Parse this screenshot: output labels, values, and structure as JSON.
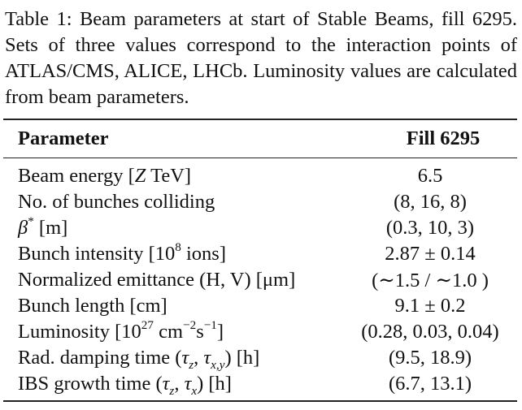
{
  "caption": "Table 1: Beam parameters at start of Stable Beams, fill 6295. Sets of three values correspond to the interaction points of ATLAS/CMS, ALICE, LHCb. Luminosity values are calculated from beam parameters.",
  "table": {
    "header": {
      "parameter": "Parameter",
      "value": "Fill 6295"
    },
    "rows": [
      {
        "parameter_pre": "Beam energy [",
        "parameter_ital": "Z",
        "parameter_post": " TeV]",
        "value": "6.5"
      },
      {
        "parameter": "No. of bunches colliding",
        "value": "(8, 16, 8)"
      },
      {
        "symbol": "β",
        "symbol_sup": "*",
        "parameter_post": " [m]",
        "value": "(0.3, 10, 3)"
      },
      {
        "parameter_pre": "Bunch intensity [10",
        "exp": "8",
        "parameter_post": " ions]",
        "value": "2.87 ± 0.14"
      },
      {
        "parameter": "Normalized emittance (H, V) [μm]",
        "value": "(∼1.5 / ∼1.0 )"
      },
      {
        "parameter": "Bunch length [cm]",
        "value": "9.1 ± 0.2"
      },
      {
        "parameter_pre": "Luminosity [10",
        "exp": "27",
        "mid": " cm",
        "exp2": "−2",
        "mid2": "s",
        "exp3": "−1",
        "parameter_post": "]",
        "value": "(0.28, 0.03, 0.04)"
      },
      {
        "parameter_pre": "Rad. damping time (",
        "tau1": "τ",
        "tau1_sub": "z",
        "sep": ", ",
        "tau2": "τ",
        "tau2_sub": "x,y",
        "parameter_post": ") [h]",
        "value": "(9.5, 18.9)"
      },
      {
        "parameter_pre": "IBS growth time (",
        "tau1": "τ",
        "tau1_sub": "z",
        "sep": ", ",
        "tau2": "τ",
        "tau2_sub": "x",
        "parameter_post": ") [h]",
        "value": "(6.7, 13.1)"
      }
    ]
  }
}
